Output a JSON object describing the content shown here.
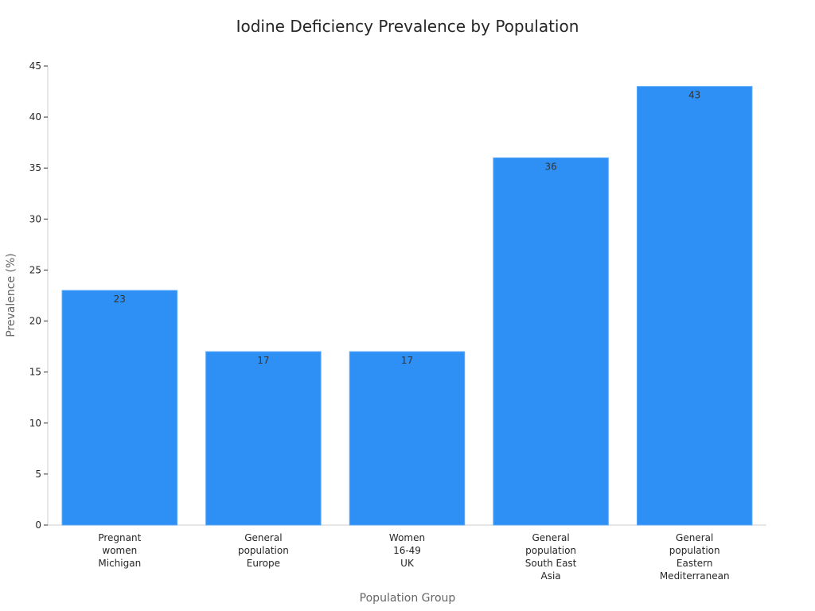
{
  "chart_data": {
    "type": "bar",
    "title": "Iodine Deficiency Prevalence by Population",
    "xlabel": "Population Group",
    "ylabel": "Prevalence (%)",
    "categories": [
      [
        "Pregnant",
        "women",
        "Michigan"
      ],
      [
        "General",
        "population",
        "Europe"
      ],
      [
        "Women",
        "16-49",
        "UK"
      ],
      [
        "General",
        "population",
        "South East",
        "Asia"
      ],
      [
        "General",
        "population",
        "Eastern",
        "Mediterranean"
      ]
    ],
    "values": [
      23,
      17,
      17,
      36,
      43
    ],
    "data_labels": [
      "23",
      "17",
      "17",
      "36",
      "43"
    ],
    "ylim": [
      0,
      45
    ],
    "yticks": [
      0,
      5,
      10,
      15,
      20,
      25,
      30,
      35,
      40,
      45
    ],
    "grid": false,
    "legend": "none",
    "bar_color": "#2e90f5"
  }
}
